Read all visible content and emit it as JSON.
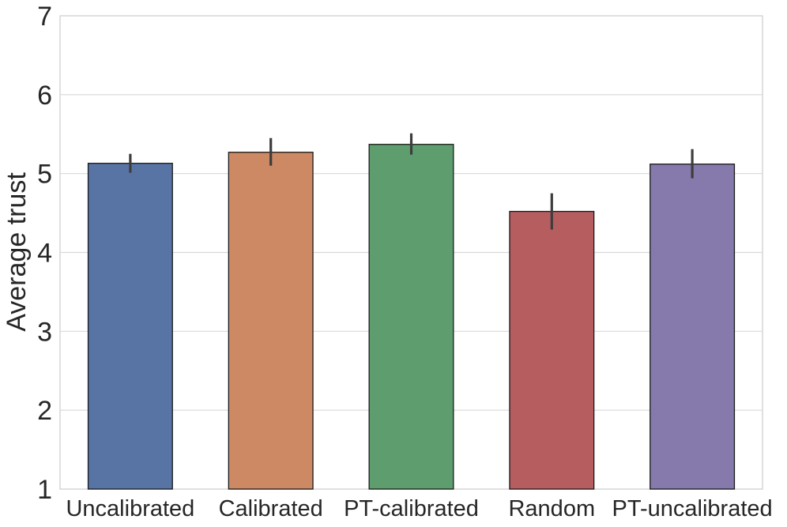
{
  "chart_data": {
    "type": "bar",
    "title": "",
    "xlabel": "",
    "ylabel": "Average trust",
    "ylim": [
      1,
      7
    ],
    "yticks": [
      "1",
      "2",
      "3",
      "4",
      "5",
      "6",
      "7"
    ],
    "categories": [
      "Uncalibrated",
      "Calibrated",
      "PT-calibrated",
      "Random",
      "PT-uncalibrated"
    ],
    "values": [
      5.13,
      5.27,
      5.37,
      4.52,
      5.12
    ],
    "error_low": [
      5.01,
      5.1,
      5.24,
      4.29,
      4.94
    ],
    "error_high": [
      5.25,
      5.45,
      5.51,
      4.75,
      5.31
    ],
    "colors": [
      "#5874a5",
      "#cc8963",
      "#5e9e6e",
      "#b65d60",
      "#857aab"
    ],
    "grid": true,
    "legend": "none"
  }
}
